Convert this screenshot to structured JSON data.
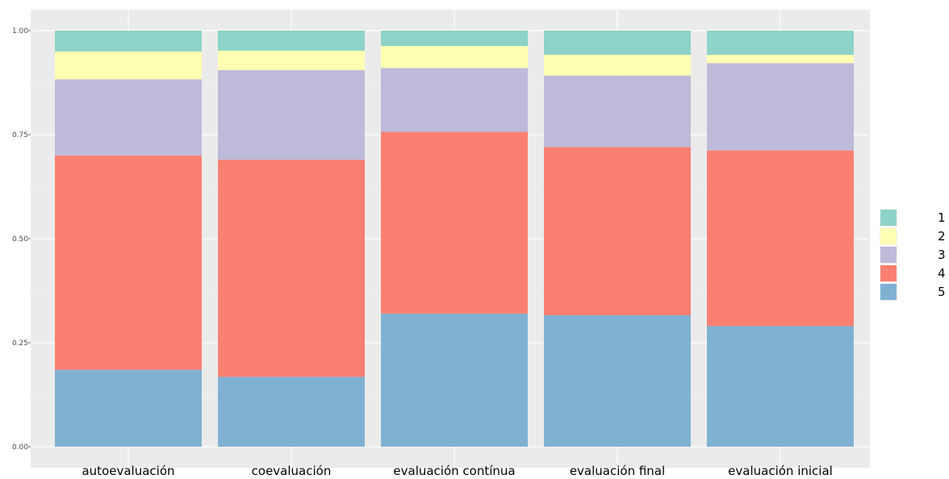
{
  "chart_data": {
    "type": "bar",
    "stacked": true,
    "normalized": true,
    "categories": [
      "autoevaluación",
      "coevaluación",
      "evaluación contínua",
      "evaluación final",
      "evaluación inicial"
    ],
    "series": [
      {
        "name": "5",
        "color": "#80B1D3",
        "values": [
          0.185,
          0.168,
          0.32,
          0.316,
          0.29
        ]
      },
      {
        "name": "4",
        "color": "#FB8072",
        "values": [
          0.515,
          0.522,
          0.437,
          0.404,
          0.422
        ]
      },
      {
        "name": "3",
        "color": "#BEBADA",
        "values": [
          0.183,
          0.215,
          0.153,
          0.172,
          0.21
        ]
      },
      {
        "name": "2",
        "color": "#FFFFB3",
        "values": [
          0.067,
          0.047,
          0.053,
          0.05,
          0.02
        ]
      },
      {
        "name": "1",
        "color": "#8DD3C7",
        "values": [
          0.05,
          0.048,
          0.037,
          0.058,
          0.058
        ]
      }
    ],
    "legend_order": [
      "1",
      "2",
      "3",
      "4",
      "5"
    ],
    "legend_position": "right",
    "yticks": [
      "0.00",
      "0.25",
      "0.50",
      "0.75",
      "1.00"
    ],
    "ylim": [
      0,
      1
    ],
    "grid": true,
    "panel_background": "#EBEBEB",
    "title": "",
    "xlabel": "",
    "ylabel": ""
  }
}
